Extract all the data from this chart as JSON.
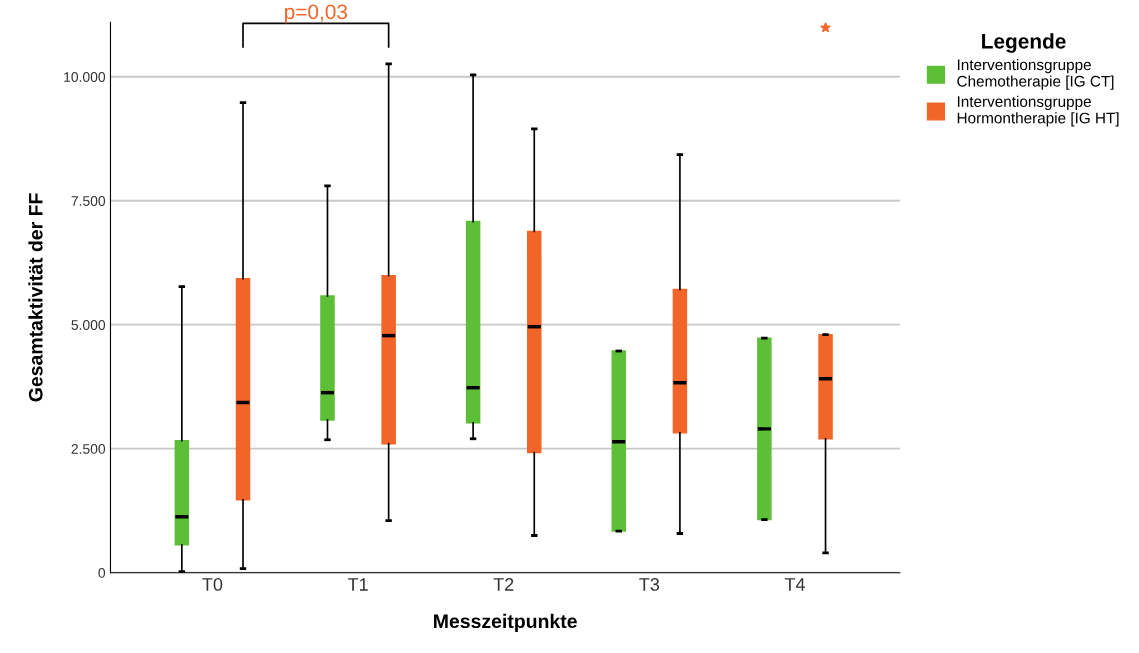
{
  "chart_data": {
    "type": "box",
    "xlabel": "Messzeitpunkte",
    "ylabel": "Gesamtaktivität der FF",
    "categories": [
      "T0",
      "T1",
      "T2",
      "T3",
      "T4"
    ],
    "series": [
      {
        "name": "Interventionsgruppe\nChemotherapie [IG CT]",
        "color": "#5dbf37",
        "boxes": [
          {
            "low": 20,
            "q1": 560,
            "median": 1130,
            "q3": 2660,
            "high": 5770
          },
          {
            "low": 2680,
            "q1": 3080,
            "median": 3630,
            "q3": 5580,
            "high": 7800
          },
          {
            "low": 2700,
            "q1": 3020,
            "median": 3730,
            "q3": 7080,
            "high": 10040
          },
          {
            "low": 840,
            "q1": 840,
            "median": 2640,
            "q3": 4470,
            "high": 4470
          },
          {
            "low": 1070,
            "q1": 1070,
            "median": 2900,
            "q3": 4730,
            "high": 4730
          }
        ]
      },
      {
        "name": "Interventionsgruppe\nHormontherapie [IG HT]",
        "color": "#f26528",
        "boxes": [
          {
            "low": 80,
            "q1": 1470,
            "median": 3430,
            "q3": 5930,
            "high": 9480
          },
          {
            "low": 1050,
            "q1": 2600,
            "median": 4780,
            "q3": 5990,
            "high": 10260
          },
          {
            "low": 750,
            "q1": 2420,
            "median": 4960,
            "q3": 6880,
            "high": 8950
          },
          {
            "low": 790,
            "q1": 2820,
            "median": 3830,
            "q3": 5710,
            "high": 8430
          },
          {
            "low": 400,
            "q1": 2700,
            "median": 3910,
            "q3": 4800,
            "high": 4800,
            "outliers": [
              10990
            ]
          }
        ]
      }
    ],
    "ylim": [
      0,
      11100
    ],
    "yticks": [
      0,
      {
        "value": 2500,
        "label": "2.500"
      },
      {
        "value": 5000,
        "label": "5.000"
      },
      {
        "value": 7500,
        "label": "7.500"
      },
      {
        "value": 10000,
        "label": "10.000"
      }
    ],
    "grid": "y",
    "legend": "top right",
    "legend_title": "Legende",
    "marker": "star",
    "annotations": [
      "p=0,03"
    ]
  }
}
